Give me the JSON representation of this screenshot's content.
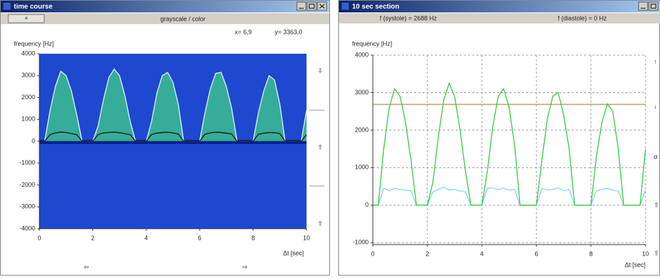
{
  "windows": [
    {
      "title": "time course",
      "toolbar": {
        "button": "+",
        "label": "grayscale / color"
      },
      "readout": [
        "x= 6,9",
        "y= 3363,0"
      ]
    },
    {
      "title": "10 sec section",
      "readout": [
        "f (systole) =  2688 Hz",
        "f (diastole) = 0 Hz"
      ]
    }
  ],
  "chart_data": [
    {
      "type": "spectrogram",
      "y_label": "frequency [Hz]",
      "x_label": "Δt [sec]",
      "xlim": [
        0,
        10
      ],
      "xticks": [
        0,
        2,
        4,
        6,
        8,
        10
      ],
      "ylim": [
        -4000,
        4000
      ],
      "yticks": [
        4000,
        3000,
        2000,
        1000,
        0,
        -1000,
        -2000,
        -3000,
        -4000
      ],
      "grid": false,
      "background": "#1e48d0",
      "x": [
        0,
        0.2,
        0.4,
        0.6,
        0.8,
        1,
        1.2,
        1.4,
        1.6,
        1.8,
        2,
        2.2,
        2.4,
        2.6,
        2.8,
        3,
        3.2,
        3.4,
        3.6,
        3.8,
        4,
        4.2,
        4.4,
        4.6,
        4.8,
        5,
        5.2,
        5.4,
        5.6,
        5.8,
        6,
        6.2,
        6.4,
        6.6,
        6.8,
        7,
        7.2,
        7.4,
        7.6,
        7.8,
        8,
        8.2,
        8.4,
        8.6,
        8.8,
        9,
        9.2,
        9.4,
        9.6,
        9.8,
        10
      ],
      "series": [
        {
          "color": "#e8f4ff",
          "fill": "#3fcf86",
          "values": [
            0,
            0,
            1400,
            2500,
            3200,
            3000,
            2300,
            1200,
            0,
            0,
            0,
            700,
            1900,
            2900,
            3300,
            3000,
            2100,
            900,
            0,
            0,
            0,
            900,
            2200,
            3000,
            3150,
            2700,
            1700,
            0,
            0,
            0,
            0,
            1300,
            2400,
            3100,
            3150,
            2500,
            1500,
            0,
            0,
            0,
            0,
            1300,
            2300,
            3000,
            2800,
            1700,
            0,
            0,
            0,
            0,
            1400
          ]
        },
        {
          "color": "#111111",
          "values": [
            0,
            0,
            300,
            380,
            420,
            400,
            350,
            300,
            0,
            0,
            0,
            300,
            380,
            400,
            420,
            390,
            350,
            300,
            0,
            0,
            0,
            310,
            370,
            400,
            410,
            380,
            330,
            0,
            0,
            0,
            0,
            320,
            380,
            410,
            400,
            370,
            330,
            0,
            0,
            0,
            0,
            320,
            370,
            400,
            390,
            350,
            0,
            0,
            0,
            0,
            300
          ]
        }
      ]
    },
    {
      "type": "line",
      "y_label": "frequency [Hz]",
      "x_label": "Δt [sec]",
      "xlim": [
        0,
        10
      ],
      "xticks": [
        0,
        2,
        4,
        6,
        8,
        10
      ],
      "ylim": [
        -1050,
        4000
      ],
      "yticks": [
        4000,
        3000,
        2000,
        1000,
        0,
        -1000
      ],
      "grid": true,
      "background": "#ffffff",
      "reference_lines": [
        {
          "value": 2688,
          "color": "#b8a060"
        }
      ],
      "x": [
        0,
        0.2,
        0.4,
        0.6,
        0.8,
        1,
        1.2,
        1.4,
        1.6,
        1.8,
        2,
        2.2,
        2.4,
        2.6,
        2.8,
        3,
        3.2,
        3.4,
        3.6,
        3.8,
        4,
        4.2,
        4.4,
        4.6,
        4.8,
        5,
        5.2,
        5.4,
        5.6,
        5.8,
        6,
        6.2,
        6.4,
        6.6,
        6.8,
        7,
        7.2,
        7.4,
        7.6,
        7.8,
        8,
        8.2,
        8.4,
        8.6,
        8.8,
        9,
        9.2,
        9.4,
        9.6,
        9.8,
        10
      ],
      "series": [
        {
          "color": "#7fd8e6",
          "values": [
            0,
            0,
            450,
            380,
            450,
            420,
            400,
            380,
            0,
            0,
            0,
            350,
            420,
            480,
            400,
            420,
            380,
            350,
            0,
            0,
            0,
            450,
            460,
            420,
            450,
            400,
            420,
            0,
            0,
            0,
            0,
            450,
            400,
            420,
            460,
            380,
            420,
            0,
            0,
            0,
            0,
            380,
            420,
            450,
            400,
            380,
            0,
            0,
            0,
            0,
            400
          ]
        },
        {
          "color": "#2ecc40",
          "values": [
            0,
            0,
            1500,
            2600,
            3100,
            2900,
            2200,
            1200,
            0,
            0,
            0,
            600,
            1800,
            2800,
            3250,
            2900,
            2000,
            900,
            0,
            0,
            0,
            900,
            2100,
            2900,
            3100,
            2600,
            1600,
            0,
            0,
            0,
            0,
            1200,
            2300,
            2900,
            3000,
            2400,
            1500,
            0,
            0,
            0,
            0,
            1300,
            2200,
            2700,
            2500,
            1500,
            0,
            0,
            0,
            0,
            1500
          ]
        }
      ]
    }
  ]
}
